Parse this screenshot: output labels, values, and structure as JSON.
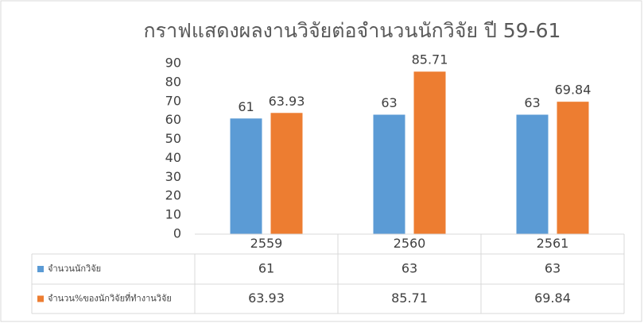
{
  "chart_data": {
    "type": "bar",
    "title": "กราฟแสดงผลงานวิจัยต่อจำนวนนักวิจัย ปี 59-61",
    "categories": [
      "2559",
      "2560",
      "2561"
    ],
    "series": [
      {
        "name": "จำนวนนักวิจัย",
        "color": "#5b9bd5",
        "values": [
          61,
          63,
          63
        ]
      },
      {
        "name": "จำนวน%ของนักวิจัยที่ทำงานวิจัย",
        "color": "#ed7d31",
        "values": [
          63.93,
          85.71,
          69.84
        ]
      }
    ],
    "ylim": [
      0,
      90
    ],
    "yticks": [
      0,
      10,
      20,
      30,
      40,
      50,
      60,
      70,
      80,
      90
    ],
    "data_table": true
  }
}
